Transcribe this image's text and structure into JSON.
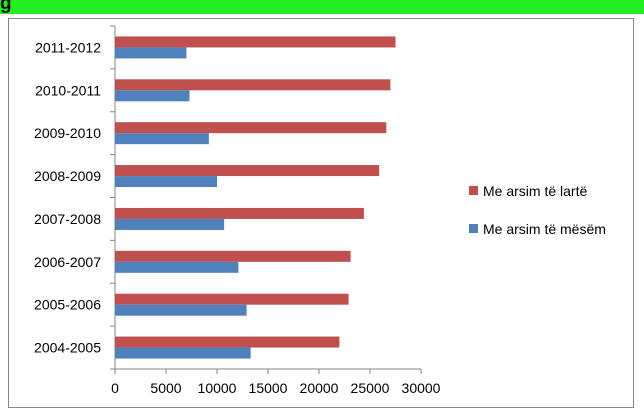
{
  "title": "g",
  "colors": {
    "title_band": "#22ee22",
    "series_higher": "#c0504d",
    "series_secondary": "#4f81bd",
    "axis": "#868686"
  },
  "chart_data": {
    "type": "bar",
    "orientation": "horizontal",
    "categories": [
      "2004-2005",
      "2005-2006",
      "2006-2007",
      "2007-2008",
      "2008-2009",
      "2009-2010",
      "2010-2011",
      "2011-2012"
    ],
    "series": [
      {
        "name": "Me arsim të lartë",
        "color": "#c0504d",
        "values": [
          22000,
          22900,
          23100,
          24400,
          25900,
          26600,
          27000,
          27500
        ]
      },
      {
        "name": "Me arsim të mësëm",
        "color": "#4f81bd",
        "values": [
          13300,
          12900,
          12100,
          10700,
          10000,
          9200,
          7300,
          7000
        ]
      }
    ],
    "x_ticks": [
      "0",
      "5000",
      "10000",
      "15000",
      "20000",
      "25000",
      "30000"
    ],
    "xlim": [
      0,
      30000
    ],
    "grid": false,
    "legend_position": "right",
    "title": "",
    "xlabel": "",
    "ylabel": ""
  }
}
